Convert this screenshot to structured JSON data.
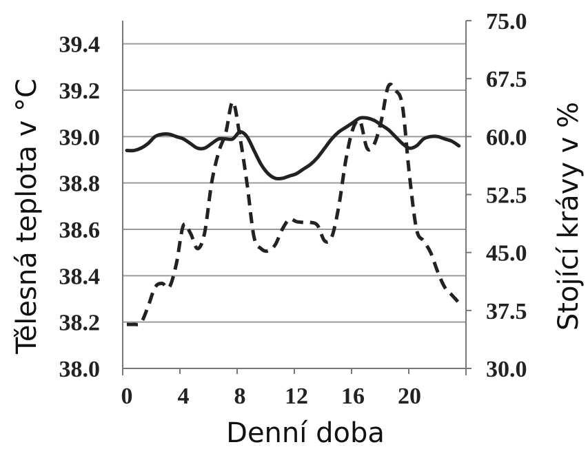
{
  "chart_data": {
    "type": "line",
    "xlabel": "Denní doba",
    "ylabel_left": "Tělesná teplota v °C",
    "ylabel_right": "Stojící krávy v %",
    "x_ticks": [
      "0",
      "4",
      "8",
      "12",
      "16",
      "20"
    ],
    "x_tick_values": [
      0,
      4,
      8,
      12,
      16,
      20
    ],
    "xlim": [
      0,
      23.5
    ],
    "y_left_ticks": [
      "38.0",
      "38.2",
      "38.4",
      "38.6",
      "38.8",
      "39.0",
      "39.2",
      "39.4"
    ],
    "y_left_tick_values": [
      38.0,
      38.2,
      38.4,
      38.6,
      38.8,
      39.0,
      39.2,
      39.4
    ],
    "ylim_left": [
      38.0,
      39.5
    ],
    "y_right_ticks": [
      "30.0",
      "37.5",
      "45.0",
      "52.5",
      "60.0",
      "67.5",
      "75.0"
    ],
    "y_right_tick_values": [
      30.0,
      37.5,
      45.0,
      52.5,
      60.0,
      67.5,
      75.0
    ],
    "ylim_right": [
      30.0,
      75.0
    ],
    "grid": true,
    "series": [
      {
        "axis": "left",
        "style": "solid",
        "color": "#222222",
        "x": [
          0,
          0.5,
          1,
          1.5,
          2,
          2.5,
          3,
          3.5,
          4,
          4.5,
          5,
          5.5,
          6,
          6.5,
          7,
          7.5,
          8,
          8.5,
          9,
          9.5,
          10,
          10.5,
          11,
          11.5,
          12,
          12.5,
          13,
          13.5,
          14,
          14.5,
          15,
          15.5,
          16,
          16.5,
          17,
          17.5,
          18,
          18.5,
          19,
          19.5,
          20,
          20.5,
          21,
          21.5,
          22,
          22.5,
          23,
          23.5
        ],
        "values": [
          38.94,
          38.94,
          38.95,
          38.97,
          39.0,
          39.01,
          39.01,
          39.0,
          38.99,
          38.97,
          38.95,
          38.95,
          38.97,
          38.99,
          38.99,
          38.99,
          39.02,
          39.0,
          38.94,
          38.88,
          38.84,
          38.82,
          38.82,
          38.83,
          38.84,
          38.86,
          38.88,
          38.91,
          38.95,
          38.99,
          39.02,
          39.04,
          39.06,
          39.08,
          39.08,
          39.07,
          39.05,
          39.03,
          39.0,
          38.97,
          38.95,
          38.96,
          38.99,
          39.0,
          39.0,
          38.99,
          38.98,
          38.96
        ]
      },
      {
        "axis": "right",
        "style": "dashed",
        "color": "#222222",
        "x": [
          0,
          0.5,
          1,
          1.5,
          2,
          2.5,
          3,
          3.5,
          4,
          4.5,
          5,
          5.5,
          6,
          6.5,
          7,
          7.5,
          8,
          8.5,
          9,
          9.5,
          10,
          10.5,
          11,
          11.5,
          12,
          12.5,
          13,
          13.5,
          14,
          14.5,
          15,
          15.5,
          16,
          16.5,
          17,
          17.5,
          18,
          18.5,
          19,
          19.5,
          20,
          20.5,
          21,
          21.5,
          22,
          22.5,
          23,
          23.5
        ],
        "values": [
          35.7,
          35.7,
          35.9,
          38.0,
          40.5,
          41.0,
          40.5,
          43.5,
          48.5,
          47.5,
          45.5,
          47.5,
          54.0,
          58.0,
          60.5,
          64.5,
          60.0,
          54.0,
          47.0,
          45.5,
          45.2,
          46.0,
          48.0,
          49.3,
          49.0,
          48.9,
          48.9,
          48.5,
          46.5,
          47.0,
          51.0,
          57.0,
          61.0,
          62.0,
          58.5,
          59.0,
          62.0,
          66.5,
          66.0,
          64.0,
          55.0,
          48.0,
          46.5,
          45.0,
          42.5,
          40.5,
          39.5,
          38.5
        ]
      }
    ]
  }
}
